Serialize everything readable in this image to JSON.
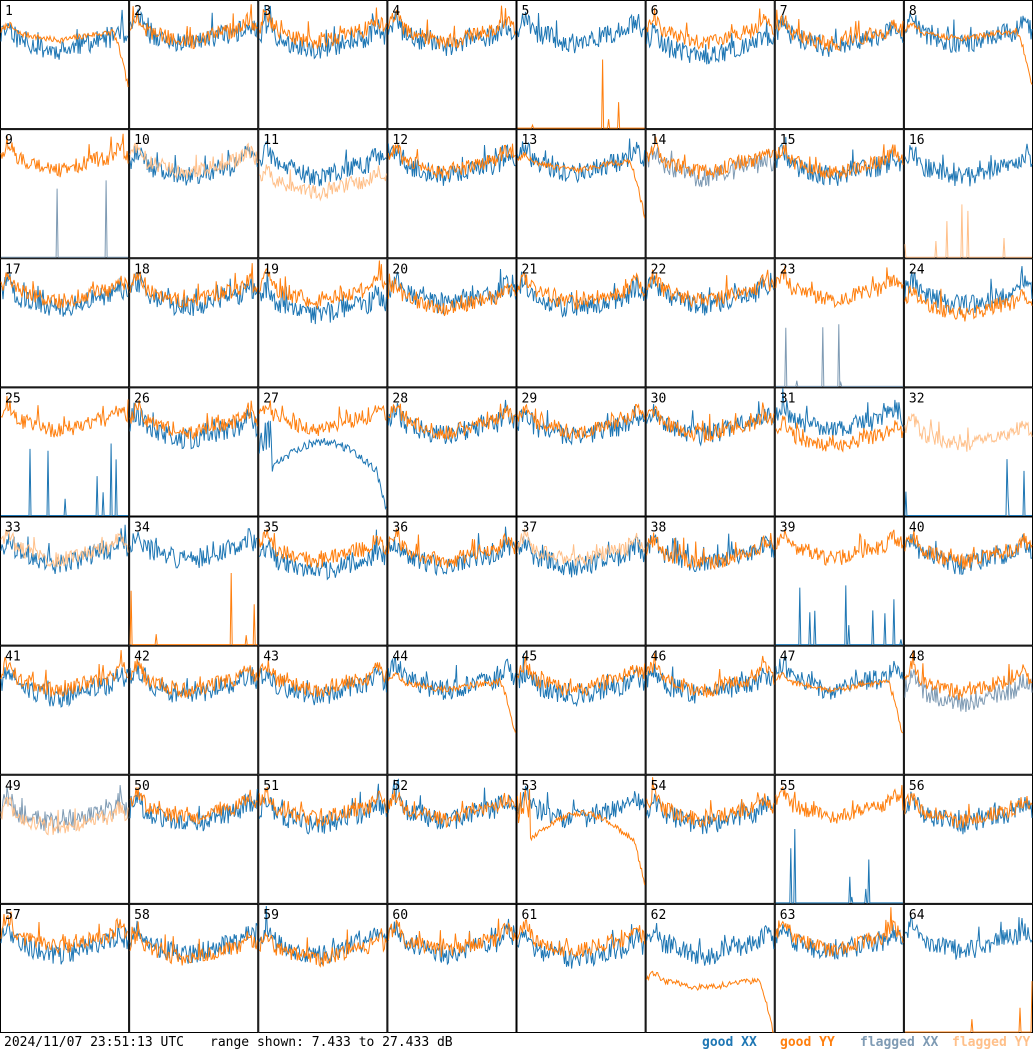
{
  "chart_data": {
    "type": "line",
    "panel_count": 64,
    "grid": {
      "rows": 8,
      "cols": 8
    },
    "panel_labels": [
      "1",
      "2",
      "3",
      "4",
      "5",
      "6",
      "7",
      "8",
      "9",
      "10",
      "11",
      "12",
      "13",
      "14",
      "15",
      "16",
      "17",
      "18",
      "19",
      "20",
      "21",
      "22",
      "23",
      "24",
      "25",
      "26",
      "27",
      "28",
      "29",
      "30",
      "31",
      "32",
      "33",
      "34",
      "35",
      "36",
      "37",
      "38",
      "39",
      "40",
      "41",
      "42",
      "43",
      "44",
      "45",
      "46",
      "47",
      "48",
      "49",
      "50",
      "51",
      "52",
      "53",
      "54",
      "55",
      "56",
      "57",
      "58",
      "59",
      "60",
      "61",
      "62",
      "63",
      "64"
    ],
    "ylim": [
      7.433,
      27.433
    ],
    "legend_placement": "bottom-right",
    "series_names": [
      "good XX",
      "good YY",
      "flagged XX",
      "flagged YY"
    ],
    "series_colors": [
      "#1f77b4",
      "#ff7f0e",
      "#7f9bb4",
      "#ffc08a"
    ],
    "panels": [
      {
        "xx": "good",
        "yy": "good",
        "xx_mean": 21.4,
        "yy_mean": 22.4,
        "yy_shape": "droop"
      },
      {
        "xx": "good",
        "yy": "good",
        "xx_mean": 22.5,
        "yy_mean": 22.8
      },
      {
        "xx": "good",
        "yy": "good",
        "xx_mean": 21.6,
        "yy_mean": 22.8
      },
      {
        "xx": "good",
        "yy": "good",
        "xx_mean": 22.1,
        "yy_mean": 22.8
      },
      {
        "xx": "good",
        "yy": "good",
        "xx_mean": 22.6,
        "yy_mean": 7.433,
        "yy_shape": "spikes"
      },
      {
        "xx": "good",
        "yy": "good",
        "xx_mean": 20.4,
        "yy_mean": 22.8
      },
      {
        "xx": "good",
        "yy": "good",
        "xx_mean": 21.9,
        "yy_mean": 22.4
      },
      {
        "xx": "good",
        "yy": "good",
        "xx_mean": 22.5,
        "yy_mean": 22.6,
        "yy_shape": "droop"
      },
      {
        "xx": "flagged",
        "yy": "good",
        "xx_mean": 7.433,
        "yy_mean": 23.0,
        "xx_shape": "spikes"
      },
      {
        "xx": "good",
        "yy": "flagged",
        "xx_mean": 21.9,
        "yy_mean": 22.6
      },
      {
        "xx": "good",
        "yy": "flagged",
        "xx_mean": 21.9,
        "yy_mean": 19.4
      },
      {
        "xx": "good",
        "yy": "good",
        "xx_mean": 22.0,
        "yy_mean": 22.6
      },
      {
        "xx": "good",
        "yy": "good",
        "xx_mean": 22.5,
        "yy_mean": 22.3,
        "yy_shape": "droop"
      },
      {
        "xx": "flagged",
        "yy": "good",
        "xx_mean": 21.8,
        "yy_mean": 22.6
      },
      {
        "xx": "good",
        "yy": "good",
        "xx_mean": 21.8,
        "yy_mean": 22.6
      },
      {
        "xx": "good",
        "yy": "flagged",
        "xx_mean": 21.8,
        "yy_mean": 7.433,
        "yy_shape": "spikes"
      },
      {
        "xx": "good",
        "yy": "good",
        "xx_mean": 21.6,
        "yy_mean": 22.6
      },
      {
        "xx": "good",
        "yy": "good",
        "xx_mean": 21.7,
        "yy_mean": 22.6
      },
      {
        "xx": "good",
        "yy": "good",
        "xx_mean": 20.3,
        "yy_mean": 22.6
      },
      {
        "xx": "good",
        "yy": "good",
        "xx_mean": 22.0,
        "yy_mean": 21.4
      },
      {
        "xx": "good",
        "yy": "good",
        "xx_mean": 21.4,
        "yy_mean": 22.4
      },
      {
        "xx": "good",
        "yy": "good",
        "xx_mean": 21.9,
        "yy_mean": 22.6
      },
      {
        "xx": "flagged",
        "yy": "good",
        "xx_mean": 7.433,
        "yy_mean": 22.8,
        "xx_shape": "spikes"
      },
      {
        "xx": "good",
        "yy": "good",
        "xx_mean": 22.0,
        "yy_mean": 20.5
      },
      {
        "xx": "good",
        "yy": "good",
        "xx_mean": 7.433,
        "yy_mean": 22.6,
        "xx_shape": "spikes"
      },
      {
        "xx": "good",
        "yy": "good",
        "xx_mean": 21.2,
        "yy_mean": 22.3
      },
      {
        "xx": "good",
        "yy": "good",
        "xx_mean": 16.0,
        "yy_mean": 22.8,
        "xx_shape": "dip"
      },
      {
        "xx": "good",
        "yy": "good",
        "xx_mean": 21.9,
        "yy_mean": 22.3
      },
      {
        "xx": "good",
        "yy": "good",
        "xx_mean": 21.6,
        "yy_mean": 22.4
      },
      {
        "xx": "good",
        "yy": "good",
        "xx_mean": 21.9,
        "yy_mean": 21.9
      },
      {
        "xx": "good",
        "yy": "good",
        "xx_mean": 22.6,
        "yy_mean": 20.0
      },
      {
        "xx": "good",
        "yy": "flagged",
        "xx_mean": 7.433,
        "yy_mean": 20.4,
        "xx_shape": "spikes"
      },
      {
        "xx": "good",
        "yy": "flagged",
        "xx_mean": 21.9,
        "yy_mean": 22.6
      },
      {
        "xx": "good",
        "yy": "good",
        "xx_mean": 22.6,
        "yy_mean": 7.433,
        "yy_shape": "spikes"
      },
      {
        "xx": "good",
        "yy": "good",
        "xx_mean": 20.7,
        "yy_mean": 22.5
      },
      {
        "xx": "good",
        "yy": "good",
        "xx_mean": 21.5,
        "yy_mean": 22.4
      },
      {
        "xx": "good",
        "yy": "flagged",
        "xx_mean": 21.4,
        "yy_mean": 22.4
      },
      {
        "xx": "good",
        "yy": "good",
        "xx_mean": 21.9,
        "yy_mean": 21.9
      },
      {
        "xx": "good",
        "yy": "good",
        "xx_mean": 7.433,
        "yy_mean": 22.8,
        "xx_shape": "spikes"
      },
      {
        "xx": "good",
        "yy": "good",
        "xx_mean": 21.8,
        "yy_mean": 22.3
      },
      {
        "xx": "good",
        "yy": "good",
        "xx_mean": 21.3,
        "yy_mean": 22.4
      },
      {
        "xx": "good",
        "yy": "good",
        "xx_mean": 21.6,
        "yy_mean": 22.3
      },
      {
        "xx": "good",
        "yy": "good",
        "xx_mean": 21.5,
        "yy_mean": 22.4
      },
      {
        "xx": "good",
        "yy": "good",
        "xx_mean": 22.4,
        "yy_mean": 21.8,
        "yy_shape": "droop"
      },
      {
        "xx": "good",
        "yy": "good",
        "xx_mean": 21.3,
        "yy_mean": 22.4
      },
      {
        "xx": "good",
        "yy": "good",
        "xx_mean": 21.6,
        "yy_mean": 22.4
      },
      {
        "xx": "good",
        "yy": "good",
        "xx_mean": 22.4,
        "yy_mean": 21.8,
        "yy_shape": "droop"
      },
      {
        "xx": "flagged",
        "yy": "good",
        "xx_mean": 20.5,
        "yy_mean": 22.0
      },
      {
        "xx": "flagged",
        "yy": "flagged",
        "xx_mean": 21.7,
        "yy_mean": 20.9
      },
      {
        "xx": "good",
        "yy": "good",
        "xx_mean": 21.6,
        "yy_mean": 22.6
      },
      {
        "xx": "good",
        "yy": "good",
        "xx_mean": 21.4,
        "yy_mean": 22.4
      },
      {
        "xx": "good",
        "yy": "good",
        "xx_mean": 22.2,
        "yy_mean": 22.3
      },
      {
        "xx": "good",
        "yy": "good",
        "xx_mean": 22.4,
        "yy_mean": 18.5,
        "yy_shape": "dip"
      },
      {
        "xx": "good",
        "yy": "good",
        "xx_mean": 21.5,
        "yy_mean": 22.3
      },
      {
        "xx": "good",
        "yy": "good",
        "xx_mean": 7.433,
        "yy_mean": 22.8,
        "xx_shape": "spikes"
      },
      {
        "xx": "good",
        "yy": "good",
        "xx_mean": 21.6,
        "yy_mean": 22.0
      },
      {
        "xx": "good",
        "yy": "good",
        "xx_mean": 21.4,
        "yy_mean": 22.6
      },
      {
        "xx": "good",
        "yy": "good",
        "xx_mean": 21.4,
        "yy_mean": 20.6
      },
      {
        "xx": "good",
        "yy": "good",
        "xx_mean": 21.4,
        "yy_mean": 20.6
      },
      {
        "xx": "good",
        "yy": "good",
        "xx_mean": 21.4,
        "yy_mean": 22.0
      },
      {
        "xx": "good",
        "yy": "good",
        "xx_mean": 20.6,
        "yy_mean": 22.0
      },
      {
        "xx": "good",
        "yy": "good",
        "xx_mean": 21.2,
        "yy_mean": 15.5,
        "yy_shape": "droop"
      },
      {
        "xx": "good",
        "yy": "good",
        "xx_mean": 21.7,
        "yy_mean": 22.2
      },
      {
        "xx": "good",
        "yy": "good",
        "xx_mean": 22.1,
        "yy_mean": 7.433,
        "yy_shape": "spikes"
      }
    ]
  },
  "footer": {
    "timestamp": "2024/11/07 23:51:13 UTC",
    "range_text": "range shown: 7.433 to 27.433 dB",
    "legend": [
      {
        "label": "good XX",
        "color": "#1f77b4"
      },
      {
        "label": "good YY",
        "color": "#ff7f0e"
      },
      {
        "label": "flagged XX",
        "color": "#7f9bb4"
      },
      {
        "label": "flagged YY",
        "color": "#ffc08a"
      }
    ]
  }
}
